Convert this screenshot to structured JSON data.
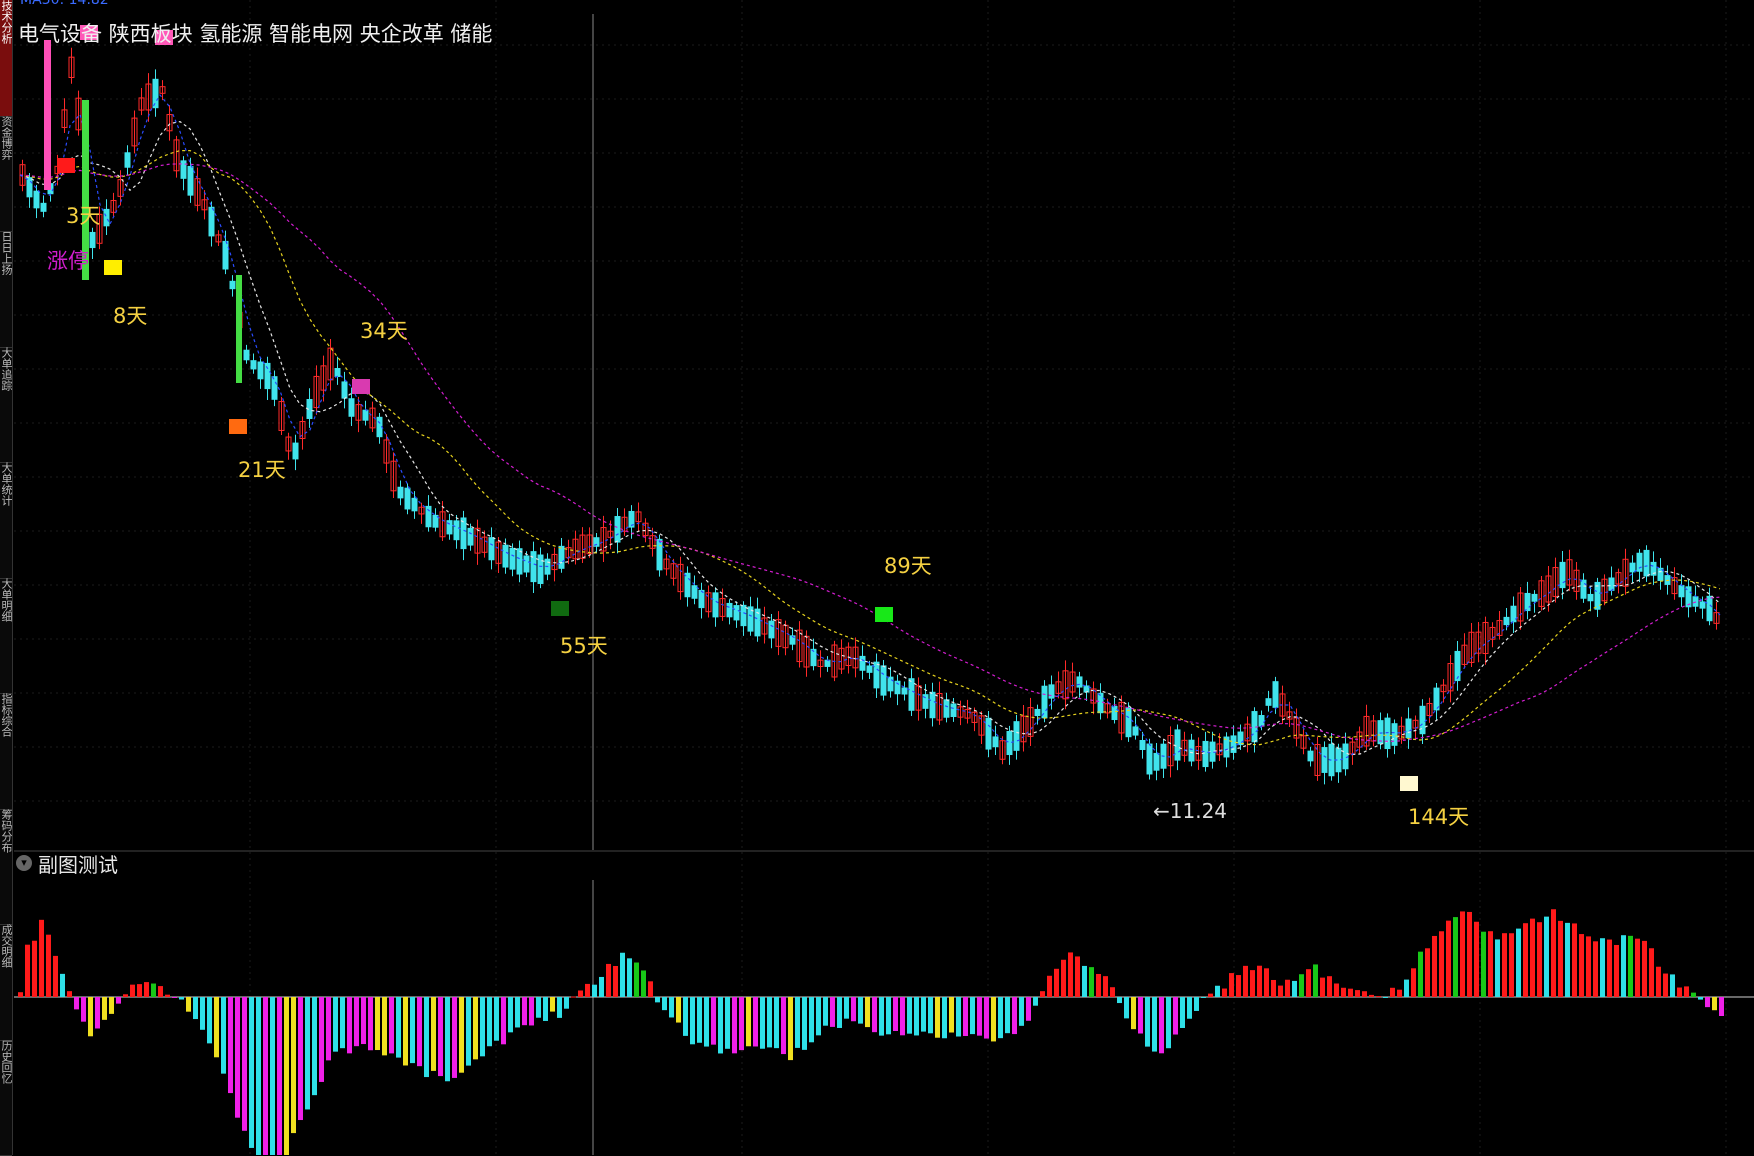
{
  "window": {
    "left_tabs": [
      "技术分析",
      "资金博弈",
      "日日上扬",
      "大单追踪",
      "大单统计",
      "大单明细",
      "指标综合",
      "筹码分布",
      "成交明细",
      "历史回忆"
    ],
    "active_tab": 0
  },
  "header": {
    "ma_readout": "MA30: 14.82",
    "tags": "电气设备 陕西板块 氢能源 智能电网 央企改革 储能"
  },
  "main_chart": {
    "annotations": {
      "limit_up": "涨停",
      "d3": "3天",
      "d8": "8天",
      "d21": "21天",
      "d34": "34天",
      "d55": "55天",
      "d89": "89天",
      "d144": "144天",
      "low_marker": "11.24"
    },
    "colors": {
      "up": "#ff2a2a",
      "down": "#40e4ec",
      "ma_white": "#e6e6e6",
      "ma_yellow": "#e6d21e",
      "ma_magenta": "#d21ecf",
      "ma_blue": "#2a4cff",
      "label_yellow": "#f5d142",
      "label_magenta": "#d21ecf"
    }
  },
  "sub_chart": {
    "title": "副图测试",
    "colors": {
      "red": "#ff1a1a",
      "green": "#18c818",
      "cyan": "#2fe0e8",
      "yellow": "#f0e020",
      "magenta": "#f020e8"
    }
  }
}
